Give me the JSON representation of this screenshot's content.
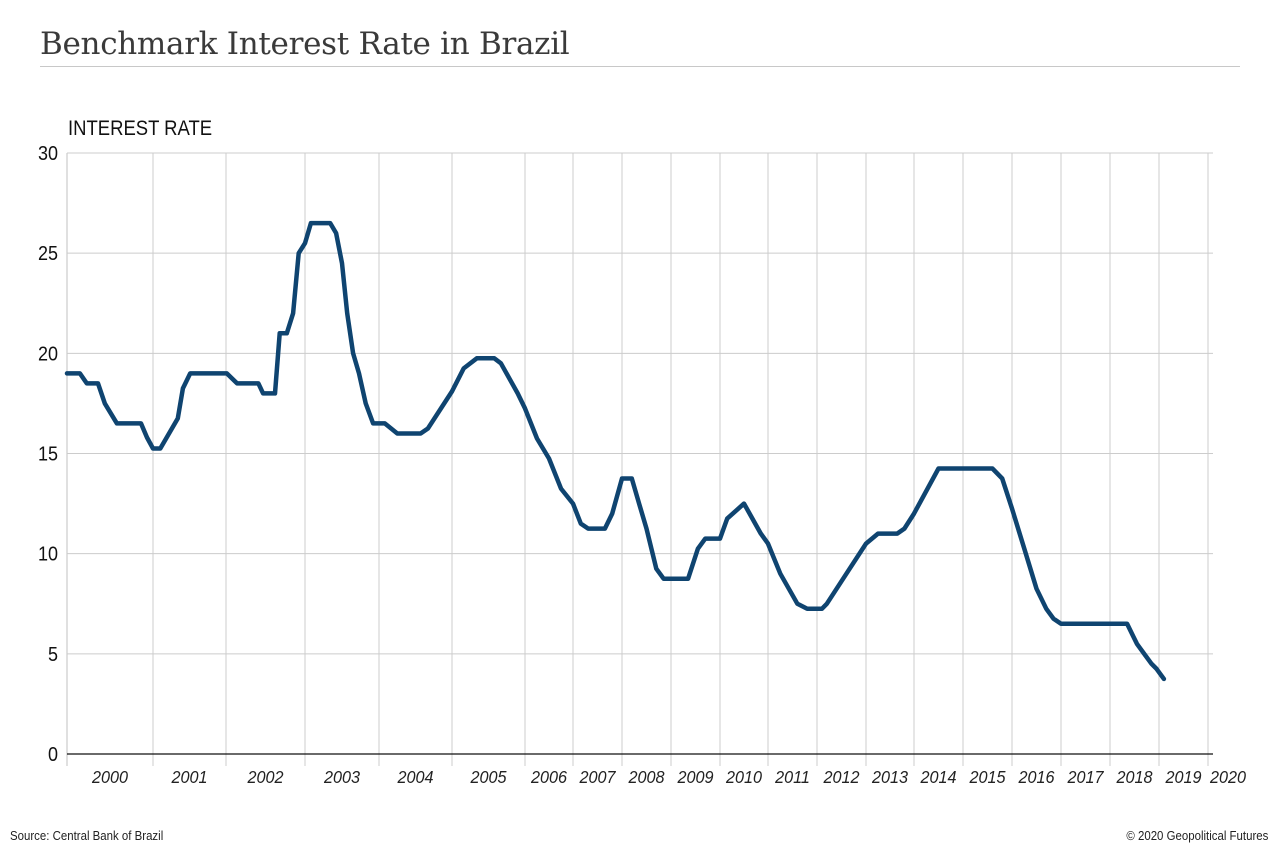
{
  "title": "Benchmark Interest Rate in Brazil",
  "source": "Source: Central Bank of Brazil",
  "copyright": "© 2020 Geopolitical Futures",
  "colors": {
    "line": "#0f4470",
    "grid": "#cccccc",
    "axis": "#111111",
    "title": "#3a3a3a"
  },
  "chart_data": {
    "type": "line",
    "title": "Benchmark Interest Rate in Brazil",
    "xlabel": "",
    "ylabel": "INTEREST RATE",
    "ylim": [
      0,
      30
    ],
    "yticks": [
      0,
      5,
      10,
      15,
      20,
      25,
      30
    ],
    "year_ticks": [
      "2000",
      "2001",
      "2002",
      "2003",
      "2004",
      "2005",
      "2006",
      "2007",
      "2008",
      "2009",
      "2010",
      "2011",
      "2012",
      "2013",
      "2014",
      "2015",
      "2016",
      "2017",
      "2018",
      "2019",
      "2020"
    ],
    "grid": true,
    "legend": "none",
    "series": [
      {
        "name": "Interest rate",
        "points": [
          [
            2000.0,
            19.0
          ],
          [
            2000.15,
            19.0
          ],
          [
            2000.23,
            18.5
          ],
          [
            2000.36,
            18.5
          ],
          [
            2000.44,
            17.5
          ],
          [
            2000.58,
            16.5
          ],
          [
            2000.86,
            16.5
          ],
          [
            2000.93,
            15.8
          ],
          [
            2001.0,
            15.25
          ],
          [
            2001.1,
            15.25
          ],
          [
            2001.34,
            16.75
          ],
          [
            2001.41,
            18.25
          ],
          [
            2001.51,
            19.0
          ],
          [
            2002.01,
            19.0
          ],
          [
            2002.14,
            18.5
          ],
          [
            2002.41,
            18.5
          ],
          [
            2002.47,
            18.0
          ],
          [
            2002.62,
            18.0
          ],
          [
            2002.68,
            21.0
          ],
          [
            2002.77,
            21.0
          ],
          [
            2002.85,
            22.0
          ],
          [
            2002.92,
            25.0
          ],
          [
            2003.0,
            25.5
          ],
          [
            2003.08,
            26.5
          ],
          [
            2003.34,
            26.5
          ],
          [
            2003.42,
            26.0
          ],
          [
            2003.5,
            24.5
          ],
          [
            2003.57,
            22.0
          ],
          [
            2003.65,
            20.0
          ],
          [
            2003.73,
            19.0
          ],
          [
            2003.82,
            17.5
          ],
          [
            2003.92,
            16.5
          ],
          [
            2004.08,
            16.5
          ],
          [
            2004.25,
            16.0
          ],
          [
            2004.57,
            16.0
          ],
          [
            2004.67,
            16.25
          ],
          [
            2005.0,
            18.1
          ],
          [
            2005.16,
            19.25
          ],
          [
            2005.34,
            19.75
          ],
          [
            2005.58,
            19.75
          ],
          [
            2005.67,
            19.5
          ],
          [
            2005.9,
            18.0
          ],
          [
            2006.0,
            17.25
          ],
          [
            2006.25,
            15.75
          ],
          [
            2006.5,
            14.75
          ],
          [
            2006.75,
            13.25
          ],
          [
            2007.0,
            12.5
          ],
          [
            2007.16,
            11.5
          ],
          [
            2007.31,
            11.25
          ],
          [
            2007.65,
            11.25
          ],
          [
            2007.8,
            12.0
          ],
          [
            2008.0,
            13.75
          ],
          [
            2008.2,
            13.75
          ],
          [
            2008.35,
            12.5
          ],
          [
            2008.5,
            11.25
          ],
          [
            2008.7,
            9.25
          ],
          [
            2008.85,
            8.75
          ],
          [
            2009.2,
            8.75
          ],
          [
            2009.35,
            8.75
          ],
          [
            2009.55,
            10.25
          ],
          [
            2009.7,
            10.75
          ],
          [
            2010.0,
            10.75
          ],
          [
            2010.15,
            11.75
          ],
          [
            2010.5,
            12.5
          ],
          [
            2010.85,
            11.0
          ],
          [
            2011.0,
            10.5
          ],
          [
            2011.25,
            9.0
          ],
          [
            2011.6,
            7.5
          ],
          [
            2011.8,
            7.25
          ],
          [
            2012.1,
            7.25
          ],
          [
            2012.2,
            7.5
          ],
          [
            2012.6,
            9.0
          ],
          [
            2013.0,
            10.5
          ],
          [
            2013.25,
            11.0
          ],
          [
            2013.65,
            11.0
          ],
          [
            2013.8,
            11.25
          ],
          [
            2014.0,
            12.0
          ],
          [
            2014.5,
            14.25
          ],
          [
            2015.0,
            14.25
          ],
          [
            2015.6,
            14.25
          ],
          [
            2015.8,
            13.75
          ],
          [
            2016.0,
            12.25
          ],
          [
            2016.25,
            10.25
          ],
          [
            2016.5,
            8.25
          ],
          [
            2016.7,
            7.25
          ],
          [
            2016.85,
            6.75
          ],
          [
            2017.0,
            6.5
          ],
          [
            2017.5,
            6.5
          ],
          [
            2018.0,
            6.5
          ],
          [
            2018.35,
            6.5
          ],
          [
            2018.55,
            5.5
          ],
          [
            2018.85,
            4.5
          ],
          [
            2018.95,
            4.25
          ],
          [
            2019.1,
            3.75
          ]
        ]
      }
    ]
  }
}
